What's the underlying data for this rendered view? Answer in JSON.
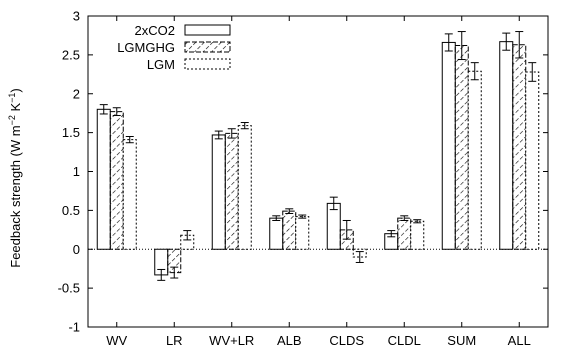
{
  "chart_data": {
    "type": "bar",
    "categories": [
      "WV",
      "LR",
      "WV+LR",
      "ALB",
      "CLDS",
      "CLDL",
      "SUM",
      "ALL"
    ],
    "series": [
      {
        "name": "2xCO2",
        "pattern": "solid",
        "values": [
          1.8,
          -0.33,
          1.47,
          0.4,
          0.59,
          0.2,
          2.66,
          2.67
        ],
        "errors": [
          0.06,
          0.07,
          0.05,
          0.03,
          0.08,
          0.04,
          0.11,
          0.11
        ]
      },
      {
        "name": "LGMGHG",
        "pattern": "hatch",
        "values": [
          1.77,
          -0.3,
          1.49,
          0.49,
          0.25,
          0.4,
          2.62,
          2.63
        ],
        "errors": [
          0.05,
          0.07,
          0.06,
          0.03,
          0.12,
          0.03,
          0.18,
          0.17
        ]
      },
      {
        "name": "LGM",
        "pattern": "dotted",
        "values": [
          1.41,
          0.18,
          1.59,
          0.42,
          -0.1,
          0.36,
          2.29,
          2.28
        ],
        "errors": [
          0.04,
          0.06,
          0.04,
          0.02,
          0.07,
          0.02,
          0.11,
          0.12
        ]
      }
    ],
    "ylabel_parts": [
      "Feedback strength (W m",
      "−2",
      " K",
      "−1",
      ")"
    ],
    "ylim": [
      -1,
      3
    ],
    "yticks": [
      "-1",
      "-0.5",
      "0",
      "0.5",
      "1",
      "1.5",
      "2",
      "2.5",
      "3"
    ],
    "ytick_values": [
      -1,
      -0.5,
      0,
      0.5,
      1,
      1.5,
      2,
      2.5,
      3
    ],
    "legend_position": "top-left",
    "grid": false,
    "zero_line": "dotted"
  }
}
